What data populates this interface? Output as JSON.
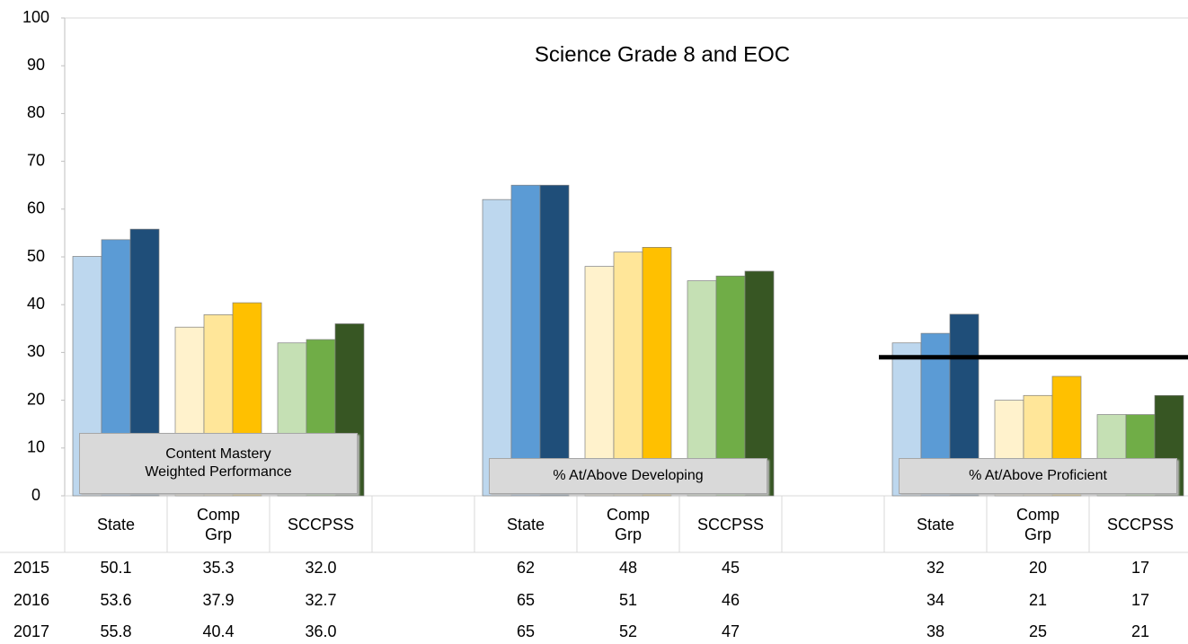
{
  "chart_data": {
    "type": "bar",
    "title": "Science Grade 8 and EOC",
    "ylim": [
      0,
      100
    ],
    "yticks": [
      0,
      10,
      20,
      30,
      40,
      50,
      60,
      70,
      80,
      90,
      100
    ],
    "years": [
      "2015",
      "2016",
      "2017"
    ],
    "groups": [
      {
        "label": "Content Mastery Weighted Performance",
        "series": [
          {
            "name": "State",
            "colors": [
              "#bdd7ee",
              "#5b9bd5",
              "#1f4e79"
            ],
            "values": [
              50.1,
              53.6,
              55.8
            ],
            "value_labels": [
              "50.1",
              "53.6",
              "55.8"
            ]
          },
          {
            "name": "Comp Grp",
            "colors": [
              "#fff2cc",
              "#ffe699",
              "#ffc000"
            ],
            "values": [
              35.3,
              37.9,
              40.4
            ],
            "value_labels": [
              "35.3",
              "37.9",
              "40.4"
            ]
          },
          {
            "name": "SCCPSS",
            "colors": [
              "#c5e0b4",
              "#70ad47",
              "#375623"
            ],
            "values": [
              32.0,
              32.7,
              36.0
            ],
            "value_labels": [
              "32.0",
              "32.7",
              "36.0"
            ]
          }
        ]
      },
      {
        "label": "% At/Above  Developing",
        "series": [
          {
            "name": "State",
            "colors": [
              "#bdd7ee",
              "#5b9bd5",
              "#1f4e79"
            ],
            "values": [
              62,
              65,
              65
            ],
            "value_labels": [
              "62",
              "65",
              "65"
            ]
          },
          {
            "name": "Comp Grp",
            "colors": [
              "#fff2cc",
              "#ffe699",
              "#ffc000"
            ],
            "values": [
              48,
              51,
              52
            ],
            "value_labels": [
              "48",
              "51",
              "52"
            ]
          },
          {
            "name": "SCCPSS",
            "colors": [
              "#c5e0b4",
              "#70ad47",
              "#375623"
            ],
            "values": [
              45,
              46,
              47
            ],
            "value_labels": [
              "45",
              "46",
              "47"
            ]
          }
        ]
      },
      {
        "label": "% At/Above  Proficient",
        "reference_value": 29,
        "series": [
          {
            "name": "State",
            "colors": [
              "#bdd7ee",
              "#5b9bd5",
              "#1f4e79"
            ],
            "values": [
              32,
              34,
              38
            ],
            "value_labels": [
              "32",
              "34",
              "38"
            ]
          },
          {
            "name": "Comp Grp",
            "colors": [
              "#fff2cc",
              "#ffe699",
              "#ffc000"
            ],
            "values": [
              20,
              21,
              25
            ],
            "value_labels": [
              "20",
              "21",
              "25"
            ]
          },
          {
            "name": "SCCPSS",
            "colors": [
              "#c5e0b4",
              "#70ad47",
              "#375623"
            ],
            "values": [
              17,
              17,
              21
            ],
            "value_labels": [
              "17",
              "17",
              "21"
            ]
          }
        ]
      }
    ]
  }
}
